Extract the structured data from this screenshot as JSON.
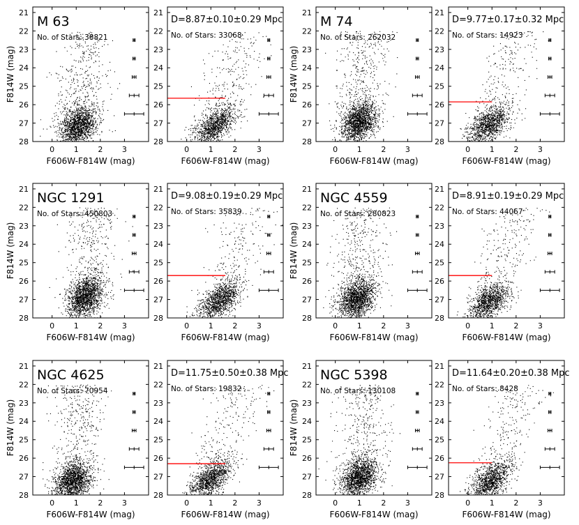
{
  "figure": {
    "x_axis_label": "F606W-F814W (mag)",
    "y_axis_label": "F814W (mag)",
    "x_tick_labels": [
      "0",
      "1",
      "2",
      "3"
    ],
    "y_tick_labels": [
      "21",
      "22",
      "23",
      "24",
      "25",
      "26",
      "27",
      "28"
    ],
    "colors": {
      "points": "#000000",
      "trgb_line": "#ff0000",
      "frame": "#000000"
    }
  },
  "chart_data": [
    {
      "type": "scatter",
      "panel": "M 63 CMD",
      "title": "M 63",
      "stars_text": "No. of Stars: 38821",
      "n_stars": 38821,
      "xlim": [
        -0.8,
        4.0
      ],
      "ylim": [
        28,
        20.7
      ],
      "xlabel": "F606W-F814W (mag)",
      "ylabel": "F814W (mag)",
      "clump": {
        "color": 1.1,
        "mag": 27.0
      },
      "error_bars": {
        "mag": [
          22.5,
          23.5,
          24.5,
          25.5,
          26.5
        ],
        "color": 3.4,
        "color_err": [
          0.03,
          0.05,
          0.08,
          0.2,
          0.4
        ]
      }
    },
    {
      "type": "scatter",
      "panel": "M 63 TRGB",
      "distance_text": "D=8.87±0.10±0.29 Mpc",
      "distance_mpc": 8.87,
      "stat_err": 0.1,
      "sys_err": 0.29,
      "stars_text": "No. of Stars: 33068",
      "n_stars": 33068,
      "trgb_mag": 25.65,
      "trgb_color_range": [
        -0.8,
        1.6
      ],
      "xlim": [
        -0.8,
        4.0
      ],
      "ylim": [
        28,
        20.7
      ],
      "xlabel": "F606W-F814W (mag)",
      "ylabel": "",
      "clump": {
        "color": 1.2,
        "mag": 27.0
      },
      "error_bars": {
        "mag": [
          22.5,
          23.5,
          24.5,
          25.5,
          26.5
        ],
        "color": 3.4,
        "color_err": [
          0.03,
          0.05,
          0.08,
          0.2,
          0.4
        ]
      }
    },
    {
      "type": "scatter",
      "panel": "M 74 CMD",
      "title": "M 74",
      "stars_text": "No. of Stars: 262032",
      "n_stars": 262032,
      "xlim": [
        -0.8,
        4.0
      ],
      "ylim": [
        28,
        20.7
      ],
      "xlabel": "F606W-F814W (mag)",
      "ylabel": "F814W (mag)",
      "clump": {
        "color": 1.0,
        "mag": 26.8
      },
      "error_bars": {
        "mag": [
          22.5,
          23.5,
          24.5,
          25.5,
          26.5
        ],
        "color": 3.4,
        "color_err": [
          0.03,
          0.05,
          0.08,
          0.2,
          0.4
        ]
      }
    },
    {
      "type": "scatter",
      "panel": "M 74 TRGB",
      "distance_text": "D=9.77±0.17±0.32 Mpc",
      "distance_mpc": 9.77,
      "stat_err": 0.17,
      "sys_err": 0.32,
      "stars_text": "No. of Stars: 14923",
      "n_stars": 14923,
      "trgb_mag": 25.85,
      "trgb_color_range": [
        -0.8,
        1.0
      ],
      "xlim": [
        -0.8,
        4.0
      ],
      "ylim": [
        28,
        20.7
      ],
      "xlabel": "F606W-F814W (mag)",
      "ylabel": "",
      "clump": {
        "color": 0.9,
        "mag": 27.0
      },
      "error_bars": {
        "mag": [
          22.5,
          23.5,
          24.5,
          25.5,
          26.5
        ],
        "color": 3.4,
        "color_err": [
          0.03,
          0.05,
          0.08,
          0.2,
          0.4
        ]
      }
    },
    {
      "type": "scatter",
      "panel": "NGC 1291 CMD",
      "title": "NGC 1291",
      "stars_text": "No. of Stars: 450803",
      "n_stars": 450803,
      "xlim": [
        -0.8,
        4.0
      ],
      "ylim": [
        28,
        20.7
      ],
      "xlabel": "F606W-F814W (mag)",
      "ylabel": "F814W (mag)",
      "clump": {
        "color": 1.4,
        "mag": 26.7
      },
      "error_bars": {
        "mag": [
          22.5,
          23.5,
          24.5,
          25.5,
          26.5
        ],
        "color": 3.4,
        "color_err": [
          0.03,
          0.05,
          0.08,
          0.2,
          0.4
        ]
      }
    },
    {
      "type": "scatter",
      "panel": "NGC 1291 TRGB",
      "distance_text": "D=9.08±0.19±0.29 Mpc",
      "distance_mpc": 9.08,
      "stat_err": 0.19,
      "sys_err": 0.29,
      "stars_text": "No. of Stars: 35839",
      "n_stars": 35839,
      "trgb_mag": 25.7,
      "trgb_color_range": [
        -0.8,
        1.6
      ],
      "xlim": [
        -0.8,
        4.0
      ],
      "ylim": [
        28,
        20.7
      ],
      "xlabel": "F606W-F814W (mag)",
      "ylabel": "",
      "clump": {
        "color": 1.4,
        "mag": 26.9
      },
      "error_bars": {
        "mag": [
          22.5,
          23.5,
          24.5,
          25.5,
          26.5
        ],
        "color": 3.4,
        "color_err": [
          0.03,
          0.05,
          0.08,
          0.2,
          0.4
        ]
      }
    },
    {
      "type": "scatter",
      "panel": "NGC 4559 CMD",
      "title": "NGC 4559",
      "stars_text": "No. of Stars: 280823",
      "n_stars": 280823,
      "xlim": [
        -0.8,
        4.0
      ],
      "ylim": [
        28,
        20.7
      ],
      "xlabel": "F606W-F814W (mag)",
      "ylabel": "F814W (mag)",
      "clump": {
        "color": 0.9,
        "mag": 26.8
      },
      "error_bars": {
        "mag": [
          22.5,
          23.5,
          24.5,
          25.5,
          26.5
        ],
        "color": 3.4,
        "color_err": [
          0.03,
          0.05,
          0.08,
          0.2,
          0.4
        ]
      }
    },
    {
      "type": "scatter",
      "panel": "NGC 4559 TRGB",
      "distance_text": "D=8.91±0.19±0.29 Mpc",
      "distance_mpc": 8.91,
      "stat_err": 0.19,
      "sys_err": 0.29,
      "stars_text": "No. of Stars: 44067",
      "n_stars": 44067,
      "trgb_mag": 25.7,
      "trgb_color_range": [
        -0.8,
        1.0
      ],
      "xlim": [
        -0.8,
        4.0
      ],
      "ylim": [
        28,
        20.7
      ],
      "xlabel": "F606W-F814W (mag)",
      "ylabel": "",
      "clump": {
        "color": 0.9,
        "mag": 27.0
      },
      "error_bars": {
        "mag": [
          22.5,
          23.5,
          24.5,
          25.5,
          26.5
        ],
        "color": 3.4,
        "color_err": [
          0.03,
          0.05,
          0.08,
          0.2,
          0.4
        ]
      }
    },
    {
      "type": "scatter",
      "panel": "NGC 4625 CMD",
      "title": "NGC 4625",
      "stars_text": "No. of Stars: 70954",
      "n_stars": 70954,
      "xlim": [
        -0.8,
        4.0
      ],
      "ylim": [
        28,
        20.7
      ],
      "xlabel": "F606W-F814W (mag)",
      "ylabel": "F814W (mag)",
      "clump": {
        "color": 0.9,
        "mag": 27.1
      },
      "error_bars": {
        "mag": [
          22.5,
          23.5,
          24.5,
          25.5,
          26.5
        ],
        "color": 3.4,
        "color_err": [
          0.03,
          0.05,
          0.08,
          0.2,
          0.4
        ]
      }
    },
    {
      "type": "scatter",
      "panel": "NGC 4625 TRGB",
      "distance_text": "D=11.75±0.50±0.38 Mpc",
      "distance_mpc": 11.75,
      "stat_err": 0.5,
      "sys_err": 0.38,
      "stars_text": "No. of Stars: 19832",
      "n_stars": 19832,
      "trgb_mag": 26.3,
      "trgb_color_range": [
        -0.8,
        1.6
      ],
      "xlim": [
        -0.8,
        4.0
      ],
      "ylim": [
        28,
        20.7
      ],
      "xlabel": "F606W-F814W (mag)",
      "ylabel": "",
      "clump": {
        "color": 1.0,
        "mag": 27.0
      },
      "error_bars": {
        "mag": [
          22.5,
          23.5,
          24.5,
          25.5,
          26.5
        ],
        "color": 3.4,
        "color_err": [
          0.03,
          0.05,
          0.08,
          0.2,
          0.4
        ]
      }
    },
    {
      "type": "scatter",
      "panel": "NGC 5398 CMD",
      "title": "NGC 5398",
      "stars_text": "No. of Stars: 130108",
      "n_stars": 130108,
      "xlim": [
        -0.8,
        4.0
      ],
      "ylim": [
        28,
        20.7
      ],
      "xlabel": "F606W-F814W (mag)",
      "ylabel": "F814W (mag)",
      "clump": {
        "color": 1.0,
        "mag": 26.9
      },
      "error_bars": {
        "mag": [
          22.5,
          23.5,
          24.5,
          25.5,
          26.5
        ],
        "color": 3.4,
        "color_err": [
          0.03,
          0.05,
          0.08,
          0.2,
          0.4
        ]
      }
    },
    {
      "type": "scatter",
      "panel": "NGC 5398 TRGB",
      "distance_text": "D=11.64±0.20±0.38 Mpc",
      "distance_mpc": 11.64,
      "stat_err": 0.2,
      "sys_err": 0.38,
      "stars_text": "No. of Stars: 8428",
      "n_stars": 8428,
      "trgb_mag": 26.25,
      "trgb_color_range": [
        -0.8,
        1.0
      ],
      "xlim": [
        -0.8,
        4.0
      ],
      "ylim": [
        28,
        20.7
      ],
      "xlabel": "F606W-F814W (mag)",
      "ylabel": "",
      "clump": {
        "color": 1.0,
        "mag": 27.1
      },
      "error_bars": {
        "mag": [
          22.5,
          23.5,
          24.5,
          25.5,
          26.5
        ],
        "color": 3.4,
        "color_err": [
          0.03,
          0.05,
          0.08,
          0.2,
          0.4
        ]
      }
    }
  ]
}
